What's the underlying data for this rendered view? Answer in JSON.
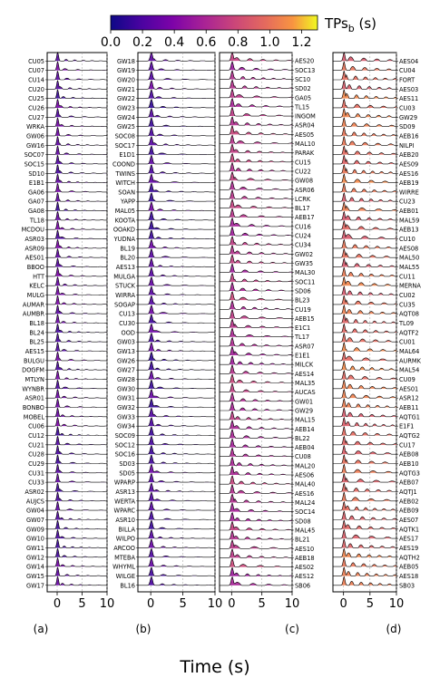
{
  "colorbar": {
    "label": "TPs_b (s)",
    "label_main": "TPs",
    "label_sub": "b",
    "label_unit": " (s)",
    "ticks": [
      "0.0",
      "0.2",
      "0.4",
      "0.6",
      "0.8",
      "1.0",
      "1.2"
    ],
    "range": [
      0.0,
      1.3
    ],
    "colormap": "plasma"
  },
  "xlabel": "Time (s)",
  "chart_data": [
    {
      "type": "waveform-record-section",
      "panel_label": "(a)",
      "station_side": "left",
      "x_ticks": [
        0,
        5,
        10
      ],
      "xlim": [
        -2,
        10
      ],
      "stations": [
        "CU05",
        "CU07",
        "CU14",
        "CU20",
        "CU25",
        "CU26",
        "CU27",
        "WRKA",
        "GW06",
        "GW16",
        "SOC07",
        "SOC15",
        "SD10",
        "E1B1",
        "GA06",
        "GA07",
        "GA08",
        "TL18",
        "MCDOU",
        "ASR03",
        "ASR09",
        "AES01",
        "BBOO",
        "HTT",
        "KELC",
        "MULG",
        "AUMAR",
        "AUMBR",
        "BL18",
        "BL24",
        "BL25",
        "AES15",
        "BULGU",
        "DOGFM",
        "MTLYN",
        "WYNBR",
        "ASR01",
        "BONBO",
        "MOBEL",
        "CU06",
        "CU12",
        "CU21",
        "CU28",
        "CU29",
        "CU31",
        "CU33",
        "ASR02",
        "AUJCS",
        "GW04",
        "GW07",
        "GW09",
        "GW10",
        "GW11",
        "GW12",
        "GW14",
        "GW15",
        "GW17"
      ],
      "tps_level": 0.25
    },
    {
      "type": "waveform-record-section",
      "panel_label": "(b)",
      "station_side": "left",
      "x_ticks": [
        0,
        5,
        10
      ],
      "xlim": [
        -2,
        10
      ],
      "stations": [
        "GW18",
        "GW19",
        "GW20",
        "GW21",
        "GW22",
        "GW23",
        "GW24",
        "GW25",
        "SOC08",
        "SOC17",
        "E1D1",
        "COOND",
        "TWINS",
        "WITCH",
        "SOAN",
        "YAPP",
        "MAL05",
        "KOOTA",
        "OOAKD",
        "YUDNA",
        "BL19",
        "BL20",
        "AES13",
        "MULGA",
        "STUCK",
        "WIRRA",
        "SOGAP",
        "CU13",
        "CU30",
        "OOD",
        "GW03",
        "GW13",
        "GW26",
        "GW27",
        "GW28",
        "GW30",
        "GW31",
        "GW32",
        "GW33",
        "GW34",
        "SOC09",
        "SOC12",
        "SOC16",
        "SD03",
        "SD05",
        "WPARP",
        "ASR13",
        "WERTA",
        "WPARC",
        "ASR10",
        "BILLA",
        "WILPO",
        "ARCOO",
        "MTEBA",
        "WHYML",
        "WILGE",
        "BL16"
      ],
      "tps_level": 0.22
    },
    {
      "type": "waveform-record-section",
      "panel_label": "(c)",
      "station_side": "right",
      "x_ticks": [
        0,
        5,
        10
      ],
      "xlim": [
        -2,
        10
      ],
      "stations": [
        "AES20",
        "SOC13",
        "SC10",
        "SD02",
        "GA05",
        "TL15",
        "INGOM",
        "ASR04",
        "AES05",
        "MAL10",
        "PARAK",
        "CU15",
        "CU22",
        "GW08",
        "ASR06",
        "LCRK",
        "BL17",
        "AEB17",
        "CU16",
        "CU24",
        "CU34",
        "GW02",
        "GW35",
        "MAL30",
        "SOC11",
        "SD06",
        "BL23",
        "CU19",
        "AEB15",
        "E1C1",
        "TL17",
        "ASR07",
        "E1E1",
        "MILCK",
        "AES14",
        "MAL35",
        "AUCAS",
        "GW01",
        "GW29",
        "MAL15",
        "AEB14",
        "BL22",
        "AEB04",
        "CU08",
        "MAL20",
        "AES06",
        "MAL40",
        "AES16",
        "MAL24",
        "SOC14",
        "SD08",
        "MAL45",
        "BL21",
        "AES10",
        "AEB18",
        "AES02",
        "AES12",
        "SB06"
      ],
      "tps_level": 0.62
    },
    {
      "type": "waveform-record-section",
      "panel_label": "(d)",
      "station_side": "right",
      "x_ticks": [
        0,
        5,
        10
      ],
      "xlim": [
        -2,
        10
      ],
      "stations": [
        "AES04",
        "CU04",
        "FORT",
        "AES03",
        "AES11",
        "CU03",
        "GW29",
        "SD09",
        "AEB16",
        "NILPI",
        "AEB20",
        "AES09",
        "AES16",
        "AEB19",
        "WIRRE",
        "CU23",
        "AEB01",
        "MAL59",
        "AEB13",
        "CU10",
        "AES08",
        "MAL50",
        "MAL55",
        "CU11",
        "MERNA",
        "CU02",
        "CU35",
        "AQT08",
        "TL09",
        "AQTF2",
        "CU01",
        "MAL64",
        "AURMK",
        "MAL54",
        "CU09",
        "AES01",
        "ASR12",
        "AEB11",
        "AQTG1",
        "E1F1",
        "AQTG2",
        "CU17",
        "AEB08",
        "AEB10",
        "AQTG3",
        "AEB07",
        "AQTJ1",
        "AEB02",
        "AEB09",
        "AES07",
        "AQTK1",
        "AES17",
        "AES19",
        "AQTH2",
        "AEB05",
        "AES18",
        "SB03"
      ],
      "tps_level": 0.95
    }
  ]
}
